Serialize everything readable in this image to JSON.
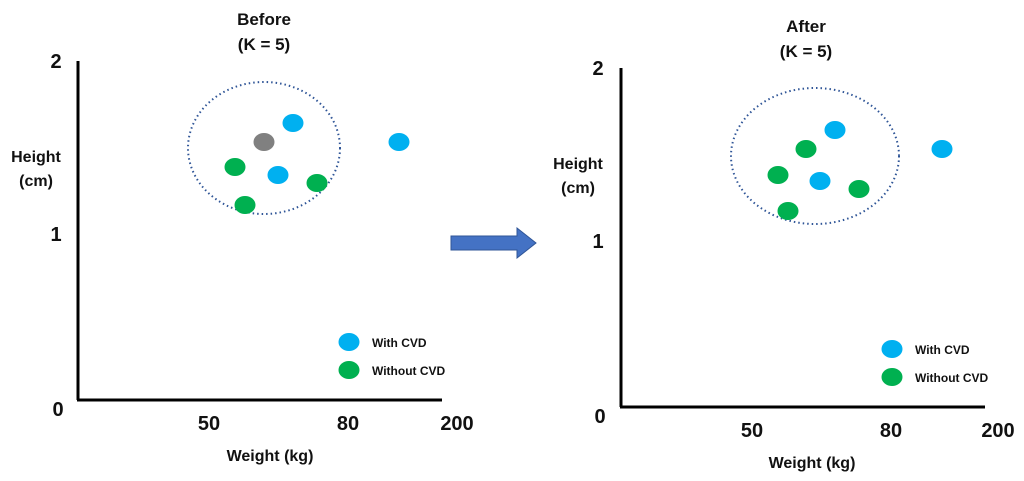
{
  "colors": {
    "with_cvd": "#00b0f0",
    "without_cvd": "#00b050",
    "query_point": "#808080",
    "axis": "#000000",
    "neighborhood_circle": "#2f5597",
    "arrow": "#4472c4"
  },
  "legend": {
    "with_cvd": "With CVD",
    "without_cvd": "Without CVD"
  },
  "arrow_icon": "right-arrow-icon",
  "panels": [
    {
      "id": "before",
      "title_line1": "Before",
      "title_line2": "(K = 5)",
      "x_label": "Weight (kg)",
      "y_label_line1": "Height",
      "y_label_line2": "(cm)",
      "x_ticks": [
        "50",
        "80",
        "200"
      ],
      "y_ticks": [
        "2",
        "1",
        "0"
      ],
      "points": [
        {
          "class": "with_cvd"
        },
        {
          "class": "with_cvd"
        },
        {
          "class": "with_cvd"
        },
        {
          "class": "without_cvd"
        },
        {
          "class": "without_cvd"
        },
        {
          "class": "without_cvd"
        },
        {
          "class": "query"
        }
      ]
    },
    {
      "id": "after",
      "title_line1": "After",
      "title_line2": "(K = 5)",
      "x_label": "Weight (kg)",
      "y_label_line1": "Height",
      "y_label_line2": "(cm)",
      "x_ticks": [
        "50",
        "80",
        "200"
      ],
      "y_ticks": [
        "2",
        "1",
        "0"
      ],
      "points": [
        {
          "class": "with_cvd"
        },
        {
          "class": "with_cvd"
        },
        {
          "class": "with_cvd"
        },
        {
          "class": "without_cvd"
        },
        {
          "class": "without_cvd"
        },
        {
          "class": "without_cvd"
        },
        {
          "class": "without_cvd"
        }
      ]
    }
  ]
}
